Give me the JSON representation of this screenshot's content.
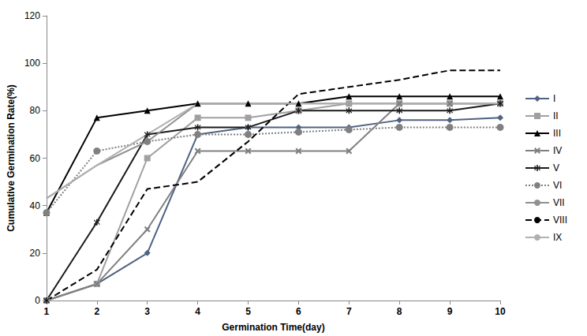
{
  "chart_data": {
    "type": "line",
    "x_label": "Germination Time(day)",
    "y_label": "Cumulative Germination Rate(%)",
    "categories": [
      1,
      2,
      3,
      4,
      5,
      6,
      7,
      8,
      9,
      10
    ],
    "ylim": [
      0,
      120
    ],
    "yticks": [
      0,
      20,
      40,
      60,
      80,
      100,
      120
    ],
    "grid": false,
    "legend": "right",
    "series": [
      {
        "name": "I",
        "color": "#4f6281",
        "marker": "diamond",
        "line_style": "solid",
        "values": [
          0,
          7,
          20,
          70,
          73,
          73,
          73,
          76,
          76,
          77
        ]
      },
      {
        "name": "II",
        "color": "#a0a0a0",
        "marker": "square",
        "line_style": "solid",
        "values": [
          0,
          7,
          60,
          77,
          77,
          80,
          83,
          83,
          83,
          83
        ]
      },
      {
        "name": "III",
        "color": "#000000",
        "marker": "triangle",
        "line_style": "solid",
        "values": [
          37,
          77,
          80,
          83,
          83,
          83,
          86,
          86,
          86,
          86
        ]
      },
      {
        "name": "IV",
        "color": "#808080",
        "marker": "x",
        "line_style": "solid",
        "values": [
          0,
          7,
          30,
          63,
          63,
          63,
          63,
          83,
          83,
          83
        ]
      },
      {
        "name": "V",
        "color": "#1a1a1a",
        "marker": "asterisk",
        "line_style": "solid",
        "values": [
          0,
          33,
          70,
          73,
          73,
          80,
          80,
          80,
          80,
          83
        ]
      },
      {
        "name": "VI",
        "color": "#808080",
        "marker": "circle",
        "line_style": "dotted",
        "values": [
          37,
          63,
          67,
          70,
          70,
          71,
          72,
          73,
          73,
          73
        ]
      },
      {
        "name": "VII",
        "color": "#909090",
        "marker": "none",
        "line_style": "solid",
        "values": [
          43,
          57,
          67,
          83,
          83,
          83,
          83,
          83,
          83,
          83
        ]
      },
      {
        "name": "VIII",
        "color": "#000000",
        "marker": "none",
        "line_style": "dashed",
        "values": [
          0,
          13,
          47,
          50,
          67,
          87,
          90,
          93,
          97,
          97
        ]
      },
      {
        "name": "IX",
        "color": "#b0b0b0",
        "marker": "none",
        "line_style": "solid",
        "values": [
          43,
          57,
          70,
          83,
          83,
          83,
          83,
          83,
          83,
          83
        ]
      }
    ]
  }
}
